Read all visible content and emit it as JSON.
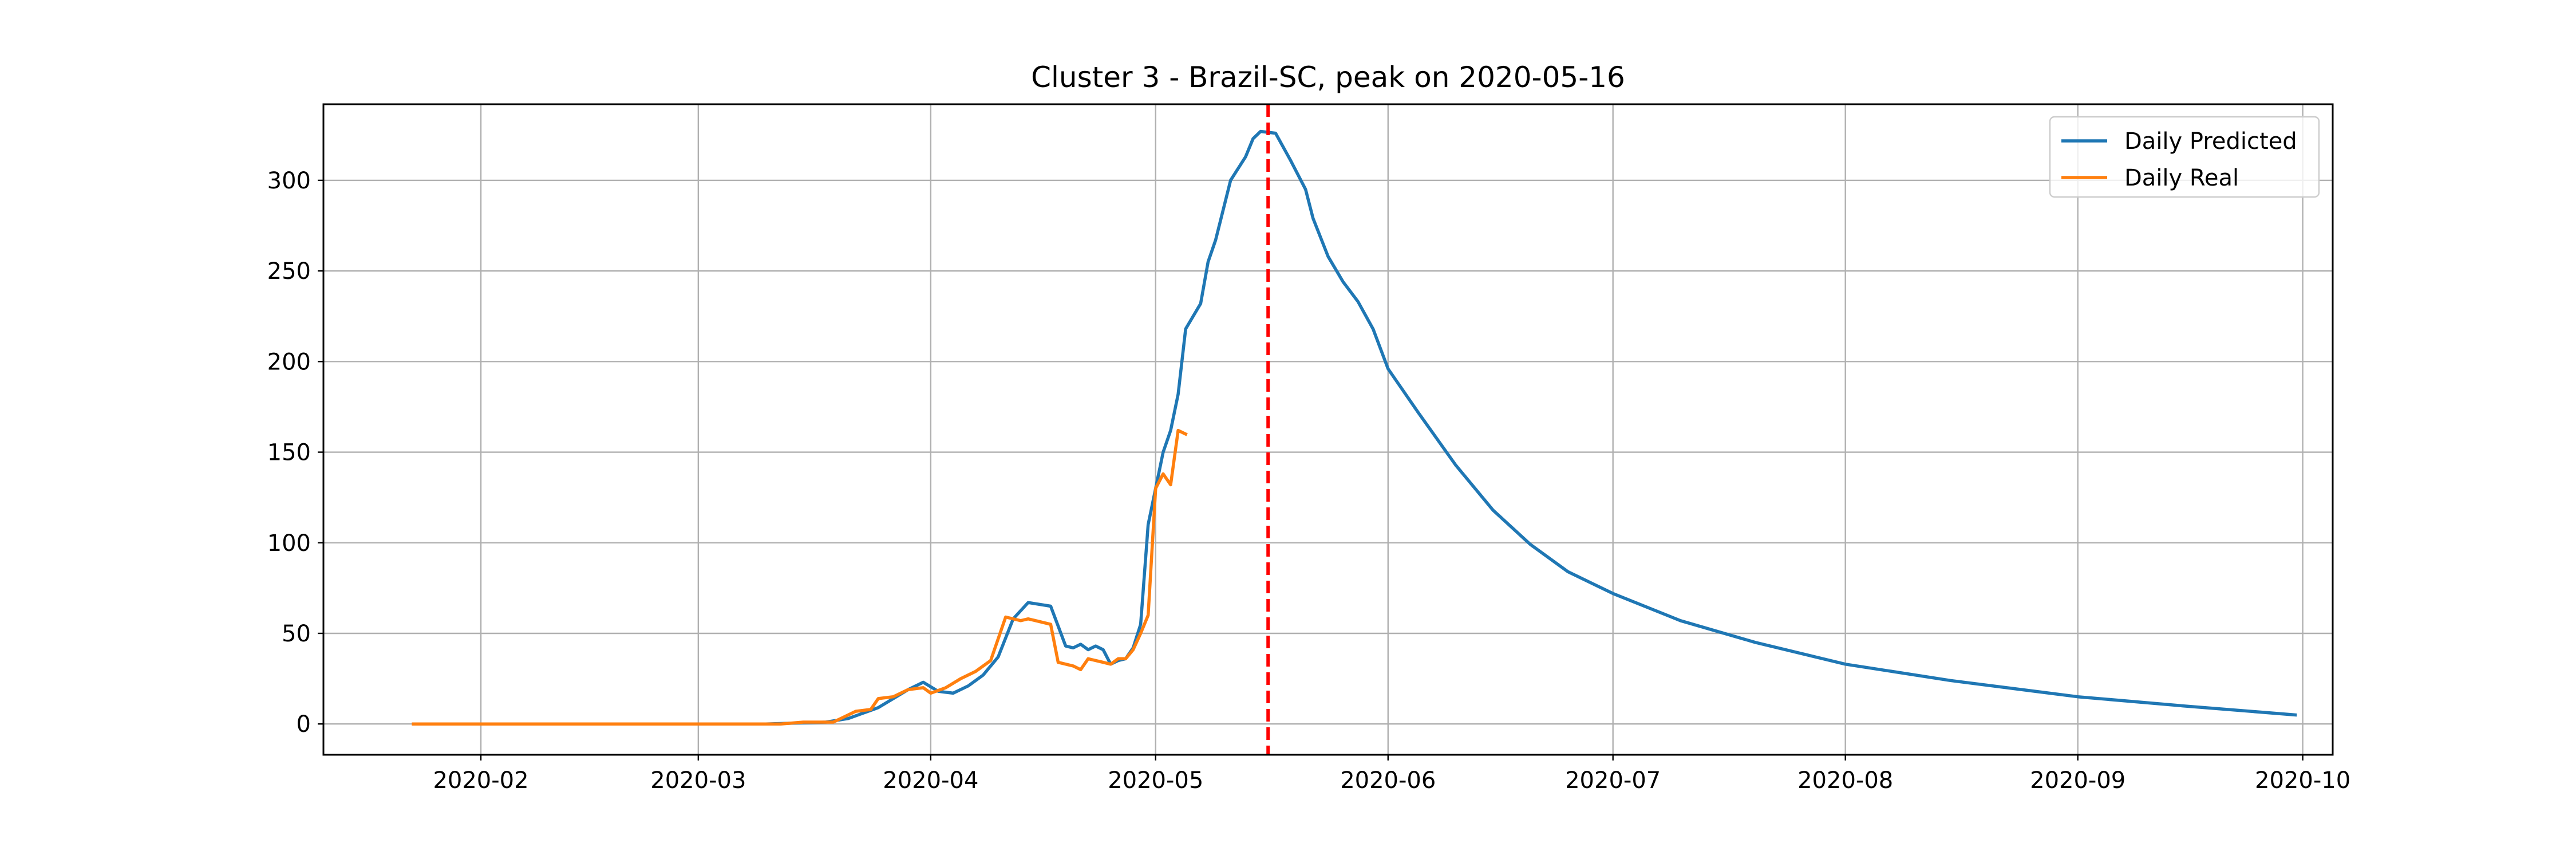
{
  "chart_data": {
    "type": "line",
    "title": "Cluster 3 - Brazil-SC, peak on 2020-05-16",
    "xlabel": "",
    "ylabel": "",
    "xlim": [
      "2020-01-11",
      "2020-10-05"
    ],
    "ylim": [
      -17,
      342
    ],
    "xticks": [
      "2020-02-01",
      "2020-03-01",
      "2020-04-01",
      "2020-05-01",
      "2020-06-01",
      "2020-07-01",
      "2020-08-01",
      "2020-09-01",
      "2020-10-01"
    ],
    "xtick_labels": [
      "2020-02",
      "2020-03",
      "2020-04",
      "2020-05",
      "2020-06",
      "2020-07",
      "2020-08",
      "2020-09",
      "2020-10"
    ],
    "yticks": [
      0,
      50,
      100,
      150,
      200,
      250,
      300
    ],
    "ytick_labels": [
      "0",
      "50",
      "100",
      "150",
      "200",
      "250",
      "300"
    ],
    "grid": true,
    "legend_position": "top-right",
    "peak_line": {
      "date": "2020-05-16",
      "color": "#ff0000",
      "style": "dashed"
    },
    "series": [
      {
        "name": "Daily Predicted",
        "color": "#1f77b4",
        "points": [
          [
            "2020-01-23",
            0
          ],
          [
            "2020-03-10",
            0
          ],
          [
            "2020-03-14",
            0.5
          ],
          [
            "2020-03-18",
            1
          ],
          [
            "2020-03-21",
            3
          ],
          [
            "2020-03-23",
            6
          ],
          [
            "2020-03-25",
            9
          ],
          [
            "2020-03-27",
            14
          ],
          [
            "2020-03-29",
            19
          ],
          [
            "2020-03-31",
            23
          ],
          [
            "2020-04-02",
            18
          ],
          [
            "2020-04-04",
            17
          ],
          [
            "2020-04-06",
            21
          ],
          [
            "2020-04-08",
            27
          ],
          [
            "2020-04-10",
            37
          ],
          [
            "2020-04-12",
            58
          ],
          [
            "2020-04-14",
            67
          ],
          [
            "2020-04-17",
            65
          ],
          [
            "2020-04-19",
            43
          ],
          [
            "2020-04-20",
            42
          ],
          [
            "2020-04-21",
            44
          ],
          [
            "2020-04-22",
            41
          ],
          [
            "2020-04-23",
            43
          ],
          [
            "2020-04-24",
            41
          ],
          [
            "2020-04-25",
            33
          ],
          [
            "2020-04-26",
            35
          ],
          [
            "2020-04-27",
            36
          ],
          [
            "2020-04-28",
            42
          ],
          [
            "2020-04-29",
            55
          ],
          [
            "2020-04-30",
            110
          ],
          [
            "2020-05-01",
            130
          ],
          [
            "2020-05-02",
            150
          ],
          [
            "2020-05-03",
            162
          ],
          [
            "2020-05-04",
            182
          ],
          [
            "2020-05-05",
            218
          ],
          [
            "2020-05-07",
            232
          ],
          [
            "2020-05-08",
            255
          ],
          [
            "2020-05-09",
            267
          ],
          [
            "2020-05-11",
            300
          ],
          [
            "2020-05-13",
            313
          ],
          [
            "2020-05-14",
            323
          ],
          [
            "2020-05-15",
            327
          ],
          [
            "2020-05-17",
            326
          ],
          [
            "2020-05-19",
            311
          ],
          [
            "2020-05-21",
            295
          ],
          [
            "2020-05-22",
            279
          ],
          [
            "2020-05-24",
            258
          ],
          [
            "2020-05-26",
            244
          ],
          [
            "2020-05-28",
            233
          ],
          [
            "2020-05-30",
            218
          ],
          [
            "2020-06-01",
            196
          ],
          [
            "2020-06-05",
            172
          ],
          [
            "2020-06-10",
            143
          ],
          [
            "2020-06-15",
            118
          ],
          [
            "2020-06-20",
            99
          ],
          [
            "2020-06-25",
            84
          ],
          [
            "2020-07-01",
            72
          ],
          [
            "2020-07-10",
            57
          ],
          [
            "2020-07-20",
            45
          ],
          [
            "2020-08-01",
            33
          ],
          [
            "2020-08-15",
            24
          ],
          [
            "2020-09-01",
            15
          ],
          [
            "2020-09-15",
            10
          ],
          [
            "2020-09-30",
            5
          ]
        ]
      },
      {
        "name": "Daily Real",
        "color": "#ff7f0e",
        "points": [
          [
            "2020-01-23",
            0
          ],
          [
            "2020-03-12",
            0
          ],
          [
            "2020-03-15",
            1
          ],
          [
            "2020-03-19",
            1
          ],
          [
            "2020-03-20",
            3
          ],
          [
            "2020-03-22",
            7
          ],
          [
            "2020-03-24",
            8
          ],
          [
            "2020-03-25",
            14
          ],
          [
            "2020-03-27",
            15
          ],
          [
            "2020-03-29",
            19
          ],
          [
            "2020-03-31",
            20
          ],
          [
            "2020-04-01",
            17
          ],
          [
            "2020-04-03",
            20
          ],
          [
            "2020-04-05",
            25
          ],
          [
            "2020-04-07",
            29
          ],
          [
            "2020-04-09",
            35
          ],
          [
            "2020-04-11",
            59
          ],
          [
            "2020-04-13",
            57
          ],
          [
            "2020-04-14",
            58
          ],
          [
            "2020-04-15",
            57
          ],
          [
            "2020-04-17",
            55
          ],
          [
            "2020-04-18",
            34
          ],
          [
            "2020-04-20",
            32
          ],
          [
            "2020-04-21",
            30
          ],
          [
            "2020-04-22",
            36
          ],
          [
            "2020-04-24",
            34
          ],
          [
            "2020-04-25",
            33
          ],
          [
            "2020-04-26",
            36
          ],
          [
            "2020-04-27",
            36
          ],
          [
            "2020-04-28",
            41
          ],
          [
            "2020-04-29",
            50
          ],
          [
            "2020-04-30",
            60
          ],
          [
            "2020-05-01",
            130
          ],
          [
            "2020-05-02",
            138
          ],
          [
            "2020-05-03",
            132
          ],
          [
            "2020-05-04",
            162
          ],
          [
            "2020-05-05",
            160
          ]
        ]
      }
    ]
  }
}
